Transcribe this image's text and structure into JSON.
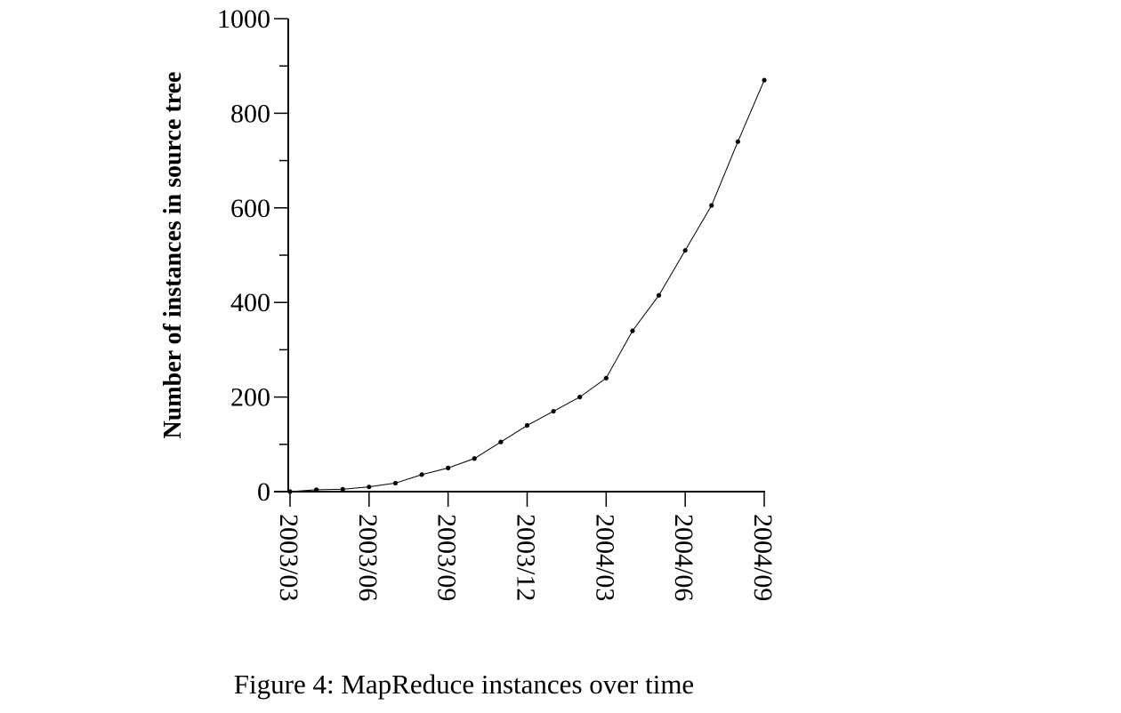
{
  "chart_data": {
    "type": "line",
    "title": "",
    "caption": "Figure 4: MapReduce instances over time",
    "xlabel": "",
    "ylabel": "Number of instances in source tree",
    "ylim": [
      0,
      1000
    ],
    "yticks": [
      "0",
      "200",
      "400",
      "600",
      "800",
      "1000"
    ],
    "xticks": [
      "2003/03",
      "2003/06",
      "2003/09",
      "2003/12",
      "2004/03",
      "2004/06",
      "2004/09"
    ],
    "grid": false,
    "markers": true,
    "color": "#000000",
    "x": [
      "2003/03",
      "2003/04",
      "2003/05",
      "2003/06",
      "2003/07",
      "2003/08",
      "2003/09",
      "2003/10",
      "2003/11",
      "2003/12",
      "2004/01",
      "2004/02",
      "2004/03",
      "2004/04",
      "2004/05",
      "2004/06",
      "2004/07",
      "2004/08",
      "2004/09"
    ],
    "values": [
      0,
      4,
      5,
      10,
      18,
      36,
      50,
      70,
      105,
      140,
      170,
      200,
      240,
      340,
      415,
      510,
      605,
      740,
      870
    ]
  }
}
